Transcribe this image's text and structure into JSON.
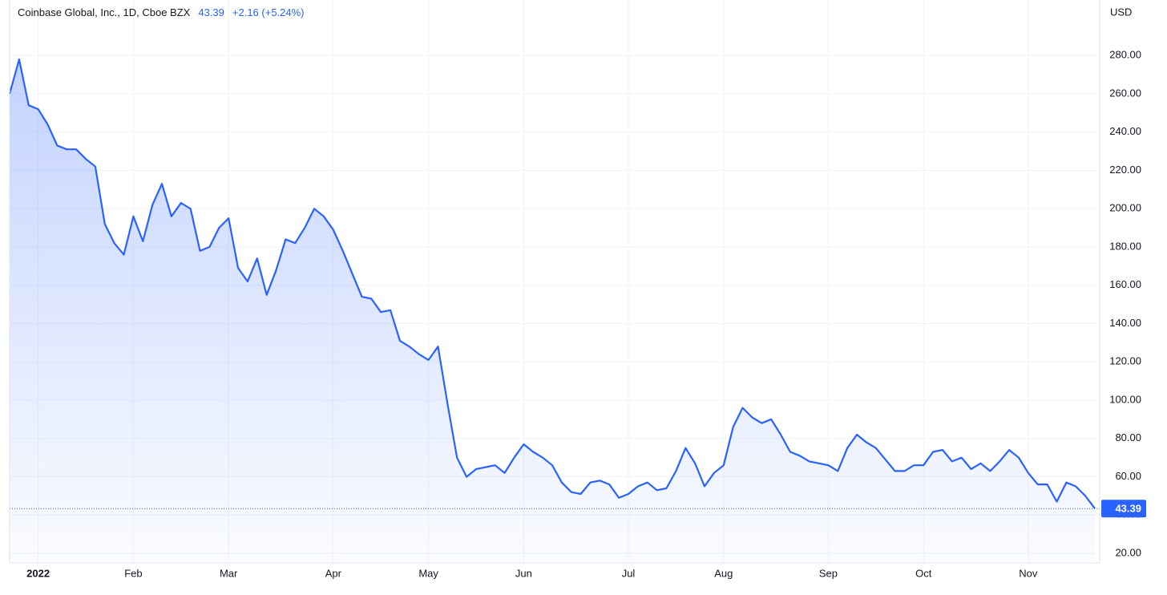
{
  "chart_data": {
    "type": "area",
    "title": "Coinbase Global, Inc., 1D, Cboe BZX",
    "change": "+2.16 (+5.24%)",
    "y_axis_label": "USD",
    "color": "#2962ff",
    "grid": true,
    "categories": [
      null,
      null,
      null,
      "2022",
      null,
      null,
      null,
      null,
      null,
      null,
      null,
      null,
      null,
      "Feb",
      null,
      null,
      null,
      null,
      null,
      null,
      null,
      null,
      null,
      "Mar",
      null,
      null,
      null,
      null,
      null,
      null,
      null,
      null,
      null,
      null,
      "Apr",
      null,
      null,
      null,
      null,
      null,
      null,
      null,
      null,
      null,
      "May",
      null,
      null,
      null,
      null,
      null,
      null,
      null,
      null,
      null,
      "Jun",
      null,
      null,
      null,
      null,
      null,
      null,
      null,
      null,
      null,
      null,
      "Jul",
      null,
      null,
      null,
      null,
      null,
      null,
      null,
      null,
      null,
      "Aug",
      null,
      null,
      null,
      null,
      null,
      null,
      null,
      null,
      null,
      null,
      "Sep",
      null,
      null,
      null,
      null,
      null,
      null,
      null,
      null,
      null,
      "Oct",
      null,
      null,
      null,
      null,
      null,
      null,
      null,
      null,
      null,
      null,
      "Nov",
      null,
      null,
      null,
      null,
      null,
      null,
      null
    ],
    "values": [
      260,
      278,
      254,
      252,
      244,
      233,
      231,
      231,
      226,
      222,
      192,
      182,
      176,
      196,
      183,
      202,
      213,
      196,
      203,
      200,
      178,
      180,
      190,
      195,
      169,
      162,
      174,
      155,
      168,
      184,
      182,
      190,
      200,
      196,
      189,
      178,
      166,
      154,
      153,
      146,
      147,
      131,
      128,
      124,
      121,
      128,
      98,
      70,
      60,
      64,
      65,
      66,
      62,
      70,
      77,
      73,
      70,
      66,
      57,
      52,
      51,
      57,
      58,
      56,
      49,
      51,
      55,
      57,
      53,
      54,
      63,
      75,
      67,
      55,
      62,
      66,
      86,
      96,
      91,
      88,
      90,
      82,
      73,
      71,
      68,
      67,
      66,
      63,
      75,
      82,
      78,
      75,
      69,
      63,
      63,
      66,
      66,
      73,
      74,
      68,
      70,
      64,
      67,
      63,
      68,
      74,
      70,
      62,
      56,
      56,
      47,
      57,
      55,
      50,
      43.39
    ],
    "ylim": [
      15,
      309
    ],
    "yticks": [
      {
        "value": 20,
        "label": "20.00"
      },
      {
        "value": 40,
        "label": "40.00"
      },
      {
        "value": 60,
        "label": "60.00"
      },
      {
        "value": 80,
        "label": "80.00"
      },
      {
        "value": 100,
        "label": "100.00"
      },
      {
        "value": 120,
        "label": "120.00"
      },
      {
        "value": 140,
        "label": "140.00"
      },
      {
        "value": 160,
        "label": "160.00"
      },
      {
        "value": 180,
        "label": "180.00"
      },
      {
        "value": 200,
        "label": "200.00"
      },
      {
        "value": 220,
        "label": "220.00"
      },
      {
        "value": 240,
        "label": "240.00"
      },
      {
        "value": 260,
        "label": "260.00"
      },
      {
        "value": 280,
        "label": "280.00"
      }
    ]
  }
}
